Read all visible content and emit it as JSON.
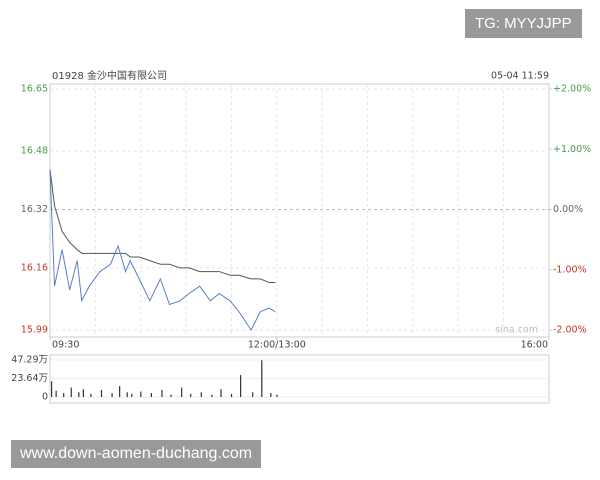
{
  "watermark": "TG: MYYJJPP",
  "footer": "www.down-aomen-duchang.com",
  "chart_data": [
    {
      "type": "line",
      "title": "01928 金沙中国有限公司",
      "timestamp": "05-04 11:59",
      "source": "sina.com",
      "x": [
        0,
        3,
        8,
        13,
        18,
        21,
        26,
        33,
        40,
        45,
        50,
        53,
        59,
        66,
        73,
        79,
        86,
        92,
        99,
        106,
        112,
        119,
        125,
        133,
        139,
        145,
        149
      ],
      "xlim": [
        0,
        330
      ],
      "xticks": [
        {
          "value": 0,
          "label": "09:30"
        },
        {
          "value": 150,
          "label": "12:00/13:00"
        },
        {
          "value": 330,
          "label": "16:00"
        }
      ],
      "ylim": [
        15.99,
        16.65
      ],
      "yticks": [
        16.65,
        16.48,
        16.32,
        16.16,
        15.99
      ],
      "y2lim": [
        -2,
        2
      ],
      "y2ticks": [
        {
          "value": 2,
          "label": "+2.00%"
        },
        {
          "value": 1,
          "label": "+1.00%"
        },
        {
          "value": 0,
          "label": "0.00%"
        },
        {
          "value": -1,
          "label": "-1.00%"
        },
        {
          "value": -2,
          "label": "-2.00%"
        }
      ],
      "series": [
        {
          "name": "price",
          "color": "#5a7fc4",
          "values": [
            16.43,
            16.11,
            16.21,
            16.1,
            16.18,
            16.07,
            16.11,
            16.15,
            16.17,
            16.22,
            16.15,
            16.18,
            16.13,
            16.07,
            16.13,
            16.06,
            16.07,
            16.09,
            16.11,
            16.07,
            16.09,
            16.07,
            16.04,
            15.99,
            16.04,
            16.05,
            16.04
          ]
        },
        {
          "name": "average",
          "color": "#555555",
          "values": [
            16.43,
            16.33,
            16.26,
            16.23,
            16.21,
            16.2,
            16.2,
            16.2,
            16.2,
            16.2,
            16.2,
            16.19,
            16.19,
            16.18,
            16.17,
            16.17,
            16.16,
            16.16,
            16.15,
            16.15,
            16.15,
            16.14,
            16.14,
            16.13,
            16.13,
            16.12,
            16.12
          ]
        }
      ]
    },
    {
      "type": "bar",
      "x": [
        0,
        3,
        8,
        13,
        18,
        21,
        26,
        33,
        40,
        45,
        50,
        53,
        59,
        66,
        73,
        79,
        86,
        92,
        99,
        106,
        112,
        119,
        125,
        133,
        139,
        145,
        149
      ],
      "xlim": [
        0,
        330
      ],
      "ylim": [
        0,
        47.29
      ],
      "yticks": [
        {
          "value": 47.29,
          "label": "47.29万"
        },
        {
          "value": 23.64,
          "label": "23.64万"
        },
        0
      ],
      "color": "#333333",
      "values": [
        20,
        8,
        5,
        12,
        6,
        10,
        4,
        9,
        5,
        14,
        6,
        4,
        7,
        5,
        9,
        3,
        12,
        4,
        6,
        3,
        10,
        4,
        28,
        6,
        47,
        5,
        3
      ]
    }
  ]
}
